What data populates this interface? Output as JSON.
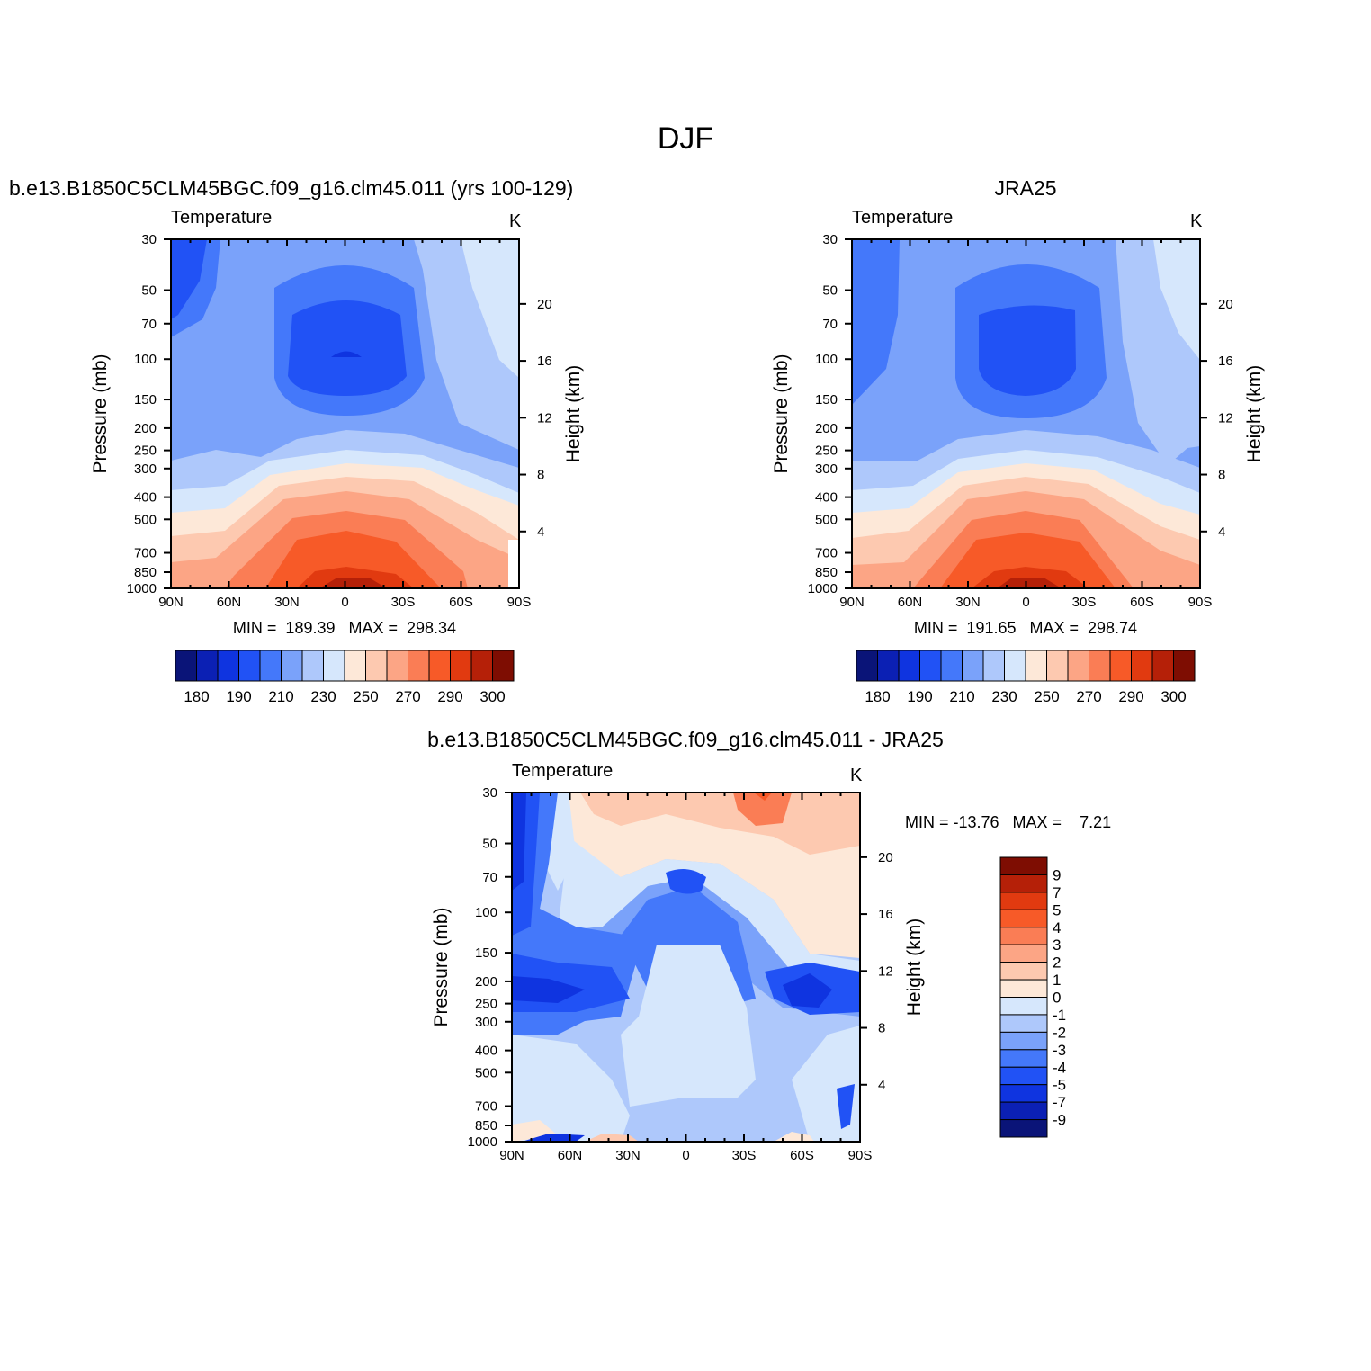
{
  "figure": {
    "main_title": "DJF"
  },
  "chart_data": [
    {
      "type": "heatmap",
      "panel": "model",
      "title": "b.e13.B1850C5CLM45BGC.f09_g16.clm45.011 (yrs 100-129)",
      "variable": "Temperature",
      "units": "K",
      "ylabel": "Pressure (mb)",
      "ylabel_right": "Height (km)",
      "x_ticks": [
        "90N",
        "60N",
        "30N",
        "0",
        "30S",
        "60S",
        "90S"
      ],
      "y_ticks": [
        30,
        50,
        70,
        100,
        150,
        200,
        250,
        300,
        400,
        500,
        700,
        850,
        1000
      ],
      "y_ticks_right": [
        4,
        8,
        12,
        16,
        20
      ],
      "ylim": [
        1000,
        30
      ],
      "stats_label": "MIN =  189.39   MAX =  298.34",
      "min": 189.39,
      "max": 298.34,
      "colorbar_labels": [
        "180",
        "190",
        "210",
        "230",
        "250",
        "270",
        "290",
        "300"
      ]
    },
    {
      "type": "heatmap",
      "panel": "obs",
      "title": "JRA25",
      "variable": "Temperature",
      "units": "K",
      "ylabel": "Pressure (mb)",
      "ylabel_right": "Height (km)",
      "x_ticks": [
        "90N",
        "60N",
        "30N",
        "0",
        "30S",
        "60S",
        "90S"
      ],
      "y_ticks": [
        30,
        50,
        70,
        100,
        150,
        200,
        250,
        300,
        400,
        500,
        700,
        850,
        1000
      ],
      "y_ticks_right": [
        4,
        8,
        12,
        16,
        20
      ],
      "ylim": [
        1000,
        30
      ],
      "stats_label": "MIN =  191.65   MAX =  298.74",
      "min": 191.65,
      "max": 298.74,
      "colorbar_labels": [
        "180",
        "190",
        "210",
        "230",
        "250",
        "270",
        "290",
        "300"
      ]
    },
    {
      "type": "heatmap",
      "panel": "diff",
      "title": "b.e13.B1850C5CLM45BGC.f09_g16.clm45.011 - JRA25",
      "variable": "Temperature",
      "units": "K",
      "ylabel": "Pressure (mb)",
      "ylabel_right": "Height (km)",
      "x_ticks": [
        "90N",
        "60N",
        "30N",
        "0",
        "30S",
        "60S",
        "90S"
      ],
      "y_ticks": [
        30,
        50,
        70,
        100,
        150,
        200,
        250,
        300,
        400,
        500,
        700,
        850,
        1000
      ],
      "y_ticks_right": [
        4,
        8,
        12,
        16,
        20
      ],
      "ylim": [
        1000,
        30
      ],
      "stats_label": "MIN = -13.76   MAX =    7.21",
      "min": -13.76,
      "max": 7.21,
      "colorbar_labels": [
        "9",
        "7",
        "5",
        "4",
        "3",
        "2",
        "1",
        "0",
        "-1",
        "-2",
        "-3",
        "-4",
        "-5",
        "-7",
        "-9"
      ]
    }
  ],
  "colors": {
    "temp_palette": [
      "#0a1478",
      "#0b20b4",
      "#0f34e0",
      "#2152f5",
      "#4478fa",
      "#7aa2fa",
      "#aec8fb",
      "#d6e7fc",
      "#fde8d8",
      "#fdc9b0",
      "#fca585",
      "#fa7d55",
      "#f75a28",
      "#e13a10",
      "#b52008",
      "#7e0d02"
    ],
    "diff_palette": [
      "#7e0d02",
      "#b52008",
      "#e13a10",
      "#f75a28",
      "#fa7d55",
      "#fca585",
      "#fdc9b0",
      "#fde8d8",
      "#d6e7fc",
      "#aec8fb",
      "#7aa2fa",
      "#4478fa",
      "#2152f5",
      "#0f34e0",
      "#0b20b4",
      "#0a1478"
    ]
  }
}
